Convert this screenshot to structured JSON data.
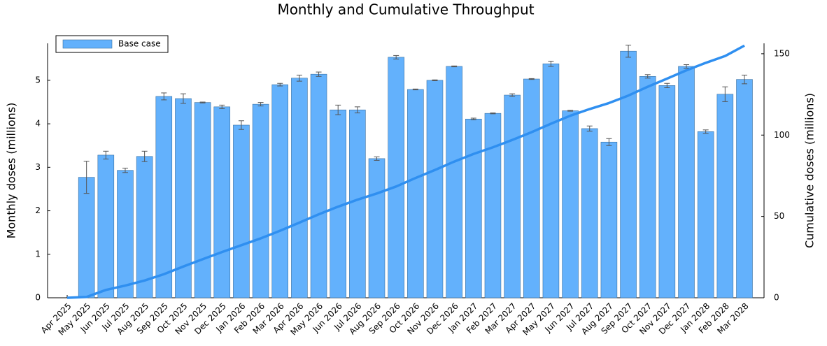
{
  "chart_data": {
    "type": "bar",
    "title": "Monthly and Cumulative Throughput",
    "ylabel": "Monthly doses (millions)",
    "y2label": "Cumulative doses (millions)",
    "categories": [
      "Apr 2025",
      "May 2025",
      "Jun 2025",
      "Jul 2025",
      "Aug 2025",
      "Sep 2025",
      "Oct 2025",
      "Nov 2025",
      "Dec 2025",
      "Jan 2026",
      "Feb 2026",
      "Mar 2026",
      "Apr 2026",
      "May 2026",
      "Jun 2026",
      "Jul 2026",
      "Aug 2026",
      "Sep 2026",
      "Oct 2026",
      "Nov 2026",
      "Dec 2026",
      "Jan 2027",
      "Feb 2027",
      "Mar 2027",
      "Apr 2027",
      "May 2027",
      "Jun 2027",
      "Jul 2027",
      "Aug 2027",
      "Sep 2027",
      "Oct 2027",
      "Nov 2027",
      "Dec 2027",
      "Jan 2028",
      "Feb 2028",
      "Mar 2028"
    ],
    "series": [
      {
        "name": "Base case",
        "type": "bar",
        "color": "#63b1fc",
        "values": [
          null,
          2.77,
          3.28,
          2.93,
          3.25,
          4.63,
          4.58,
          4.49,
          4.39,
          3.97,
          4.45,
          4.9,
          5.05,
          5.14,
          4.32,
          4.32,
          3.2,
          5.53,
          4.79,
          5.0,
          5.32,
          4.11,
          4.24,
          4.66,
          5.03,
          5.38,
          4.3,
          3.89,
          3.58,
          5.67,
          5.09,
          4.88,
          5.32,
          3.82,
          4.68,
          5.02
        ],
        "errors": [
          null,
          0.37,
          0.09,
          0.05,
          0.12,
          0.08,
          0.11,
          0.01,
          0.04,
          0.1,
          0.04,
          0.03,
          0.07,
          0.05,
          0.11,
          0.07,
          0.04,
          0.04,
          0.01,
          0.01,
          0.01,
          0.02,
          0.01,
          0.03,
          0.01,
          0.06,
          0.01,
          0.06,
          0.08,
          0.14,
          0.04,
          0.05,
          0.04,
          0.04,
          0.17,
          0.1
        ]
      },
      {
        "type": "line",
        "axis": "y2",
        "color": "#2f8ff0",
        "values": [
          0,
          0.5,
          4.8,
          7.5,
          10.6,
          14.5,
          19.2,
          23.7,
          28.1,
          32.3,
          36.5,
          41.2,
          46.2,
          51.3,
          56.0,
          60.3,
          64.1,
          68.4,
          73.6,
          78.5,
          83.7,
          88.4,
          92.5,
          97.0,
          101.8,
          107.0,
          111.9,
          116.0,
          119.7,
          124.3,
          129.7,
          134.7,
          139.8,
          144.4,
          148.6,
          155.0
        ]
      }
    ],
    "ylim": [
      0,
      5.85
    ],
    "yticks": [
      0,
      1,
      2,
      3,
      4,
      5
    ],
    "y2lim": [
      0,
      156.4
    ],
    "y2ticks": [
      0,
      50,
      100,
      150
    ],
    "legend": "top-left"
  }
}
